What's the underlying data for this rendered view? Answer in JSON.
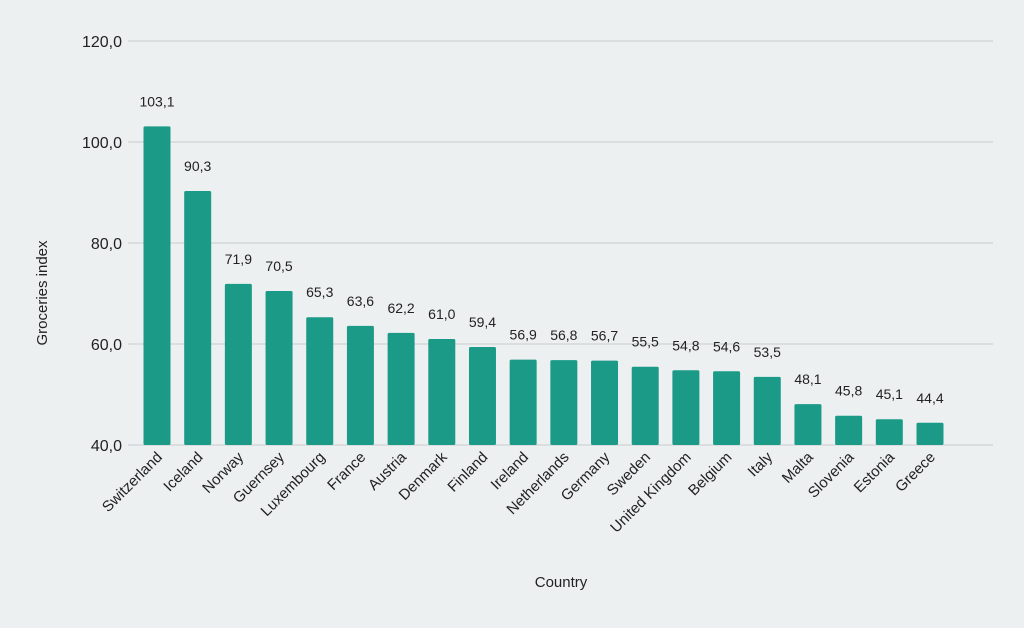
{
  "chart_data": {
    "type": "bar",
    "title": "",
    "xlabel": "Country",
    "ylabel": "Groceries index",
    "ylim": [
      40,
      120
    ],
    "yticks": [
      "40,0",
      "60,0",
      "80,0",
      "100,0",
      "120,0"
    ],
    "grid": true,
    "bar_color": "#1b9a87",
    "background": "#edf0f1",
    "categories": [
      "Switzerland",
      "Iceland",
      "Norway",
      "Guernsey",
      "Luxembourg",
      "France",
      "Austria",
      "Denmark",
      "Finland",
      "Ireland",
      "Netherlands",
      "Germany",
      "Sweden",
      "United Kingdom",
      "Belgium",
      "Italy",
      "Malta",
      "Slovenia",
      "Estonia",
      "Greece"
    ],
    "values": [
      103.1,
      90.3,
      71.9,
      70.5,
      65.3,
      63.6,
      62.2,
      61.0,
      59.4,
      56.9,
      56.8,
      56.7,
      55.5,
      54.8,
      54.6,
      53.5,
      48.1,
      45.8,
      45.1,
      44.4
    ],
    "data_labels": [
      "103,1",
      "90,3",
      "71,9",
      "70,5",
      "65,3",
      "63,6",
      "62,2",
      "61,0",
      "59,4",
      "56,9",
      "56,8",
      "56,7",
      "55,5",
      "54,8",
      "54,6",
      "53,5",
      "48,1",
      "45,8",
      "45,1",
      "44,4"
    ]
  }
}
